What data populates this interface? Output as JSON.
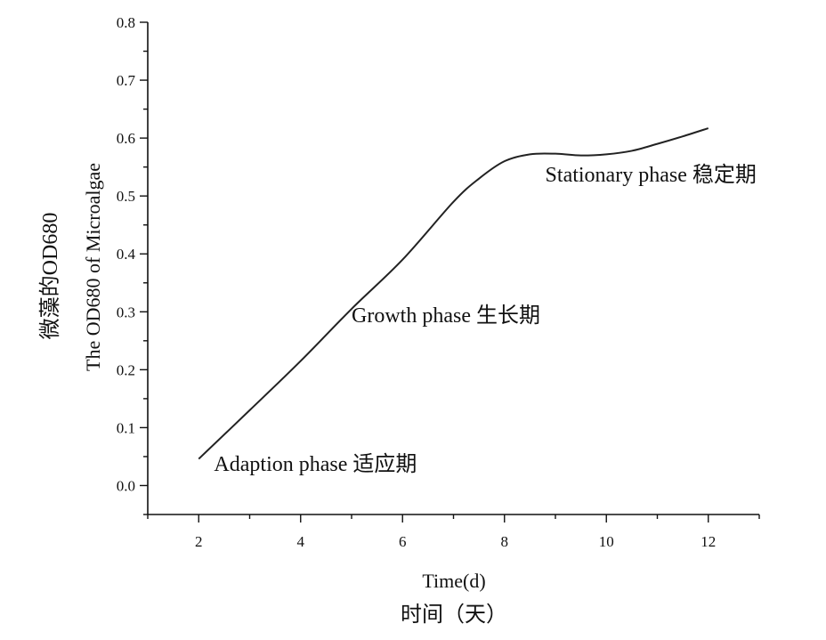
{
  "chart_data": {
    "type": "line",
    "xlabel": "Time(d)",
    "xlabel_cn": "时间（天）",
    "ylabel": "The OD680 of Microalgae",
    "ylabel_cn": "微藻的OD680",
    "xlim": [
      1,
      13
    ],
    "ylim": [
      -0.05,
      0.8
    ],
    "x_ticks": [
      2,
      4,
      6,
      8,
      10,
      12
    ],
    "y_ticks": [
      "0.0",
      "0.1",
      "0.2",
      "0.3",
      "0.4",
      "0.5",
      "0.6",
      "0.7",
      "0.8"
    ],
    "grid": false,
    "series": [
      {
        "x": [
          2,
          3,
          4,
          5,
          6,
          7,
          7.5,
          8,
          8.5,
          9,
          9.5,
          10,
          10.5,
          11,
          11.5,
          12
        ],
        "y": [
          0.046,
          0.13,
          0.215,
          0.305,
          0.39,
          0.49,
          0.53,
          0.56,
          0.572,
          0.573,
          0.57,
          0.572,
          0.578,
          0.59,
          0.603,
          0.617
        ]
      }
    ],
    "annotations": [
      {
        "text": "Adaption phase  适应期",
        "x": 2.3,
        "y": 0.025
      },
      {
        "text": "Growth phase 生长期",
        "x": 5.0,
        "y": 0.282
      },
      {
        "text": "Stationary phase 稳定期",
        "x": 8.8,
        "y": 0.525
      }
    ]
  }
}
